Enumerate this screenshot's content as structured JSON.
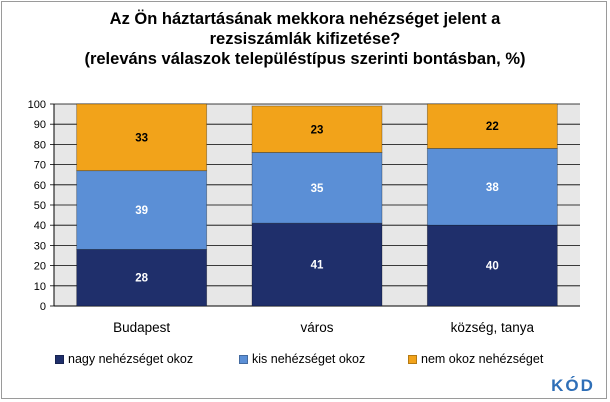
{
  "title_lines": [
    "Az Ön háztartásának mekkora nehézséget jelent a",
    "rezsiszámlák kifizetése?",
    "(releváns válaszok településtípus szerinti bontásban, %)"
  ],
  "logo_text": "KÓD",
  "colors": {
    "nagy": "#1f2f6b",
    "kis": "#5b8fd6",
    "nem": "#f2a31a",
    "plot_bg": "#e7e7e7",
    "grid": "#000000"
  },
  "chart_data": {
    "type": "bar",
    "stacked": true,
    "title": "Az Ön háztartásának mekkora nehézséget jelent a rezsiszámlák kifizetése? (releváns válaszok településtípus szerinti bontásban, %)",
    "categories": [
      "Budapest",
      "város",
      "község, tanya"
    ],
    "series": [
      {
        "name": "nagy nehézséget okoz",
        "values": [
          28,
          41,
          40
        ]
      },
      {
        "name": "kis nehézséget okoz",
        "values": [
          39,
          35,
          38
        ]
      },
      {
        "name": "nem okoz nehézséget",
        "values": [
          33,
          23,
          22
        ]
      }
    ],
    "ylim": [
      0,
      100
    ],
    "yticks": [
      0,
      10,
      20,
      30,
      40,
      50,
      60,
      70,
      80,
      90,
      100
    ],
    "grid": true,
    "legend_position": "bottom"
  }
}
